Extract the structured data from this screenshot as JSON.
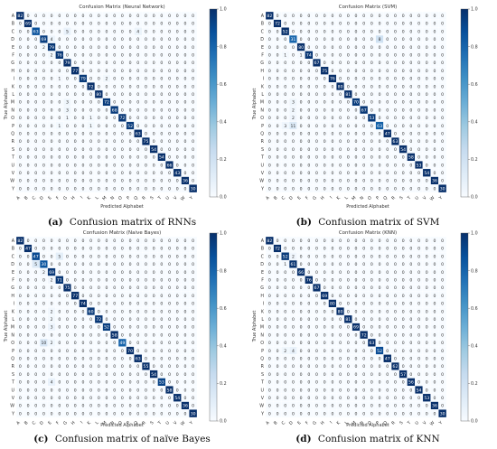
{
  "colorbar": {
    "low_color": "#f7fbff",
    "high_color": "#08306b",
    "ticks": [
      "0.0",
      "0.2",
      "0.4",
      "0.6",
      "0.8",
      "1.0"
    ]
  },
  "chart_data": [
    {
      "type": "heatmap",
      "title": "Confusion Matrix (Neural Network)",
      "xlabel": "Predicted Alphabet",
      "ylabel": "True Alphabet",
      "caption_letter": "(a)",
      "caption_text": "Confusion matrix of RNNs",
      "labels": [
        "A",
        "B",
        "C",
        "D",
        "E",
        "F",
        "G",
        "H",
        "I",
        "K",
        "L",
        "M",
        "N",
        "O",
        "P",
        "Q",
        "R",
        "S",
        "T",
        "U",
        "V",
        "W",
        "Y"
      ],
      "diagonal": [
        82,
        69,
        63,
        69,
        79,
        76,
        79,
        77,
        79,
        72,
        80,
        72,
        68,
        72,
        52,
        63,
        75,
        54,
        54,
        66,
        43,
        36,
        30
      ],
      "off_diagonal": [
        {
          "row": 2,
          "col": 6,
          "value": 5
        },
        {
          "row": 2,
          "col": 15,
          "value": 4
        },
        {
          "row": 3,
          "col": 4,
          "value": 4
        },
        {
          "row": 4,
          "col": 3,
          "value": 2
        },
        {
          "row": 5,
          "col": 4,
          "value": 2
        },
        {
          "row": 8,
          "col": 5,
          "value": 1
        },
        {
          "row": 8,
          "col": 11,
          "value": 2
        },
        {
          "row": 11,
          "col": 6,
          "value": 3
        },
        {
          "row": 12,
          "col": 6,
          "value": 3
        },
        {
          "row": 13,
          "col": 6,
          "value": 1
        },
        {
          "row": 13,
          "col": 9,
          "value": 1
        },
        {
          "row": 14,
          "col": 5,
          "value": 1
        },
        {
          "row": 14,
          "col": 9,
          "value": 1
        }
      ]
    },
    {
      "type": "heatmap",
      "title": "Confusion Matrix (SVM)",
      "xlabel": "Predicted Alphabet",
      "ylabel": "True Alphabet",
      "caption_letter": "(b)",
      "caption_text": "Confusion matrix of SVM",
      "labels": [
        "A",
        "B",
        "C",
        "D",
        "E",
        "F",
        "G",
        "H",
        "I",
        "K",
        "L",
        "M",
        "N",
        "O",
        "P",
        "Q",
        "R",
        "S",
        "T",
        "U",
        "V",
        "W",
        "Y"
      ],
      "diagonal": [
        82,
        72,
        52,
        31,
        80,
        74,
        67,
        75,
        76,
        80,
        81,
        70,
        67,
        53,
        63,
        47,
        63,
        54,
        58,
        53,
        54,
        36,
        30
      ],
      "off_diagonal": [
        {
          "row": 3,
          "col": 14,
          "value": 8
        },
        {
          "row": 5,
          "col": 2,
          "value": 1
        },
        {
          "row": 5,
          "col": 4,
          "value": 1
        },
        {
          "row": 11,
          "col": 3,
          "value": 3
        },
        {
          "row": 12,
          "col": 3,
          "value": 2
        },
        {
          "row": 13,
          "col": 3,
          "value": 2
        },
        {
          "row": 14,
          "col": 2,
          "value": 3
        },
        {
          "row": 14,
          "col": 3,
          "value": 11
        }
      ]
    },
    {
      "type": "heatmap",
      "title": "Confusion Matrix (Naive Bayes)",
      "xlabel": "Predicted Alphabet",
      "ylabel": "True Alphabet",
      "caption_letter": "(c)",
      "caption_text": "Confusion matrix of naïve Bayes",
      "labels": [
        "A",
        "B",
        "C",
        "D",
        "E",
        "F",
        "G",
        "H",
        "I",
        "K",
        "L",
        "M",
        "N",
        "O",
        "P",
        "Q",
        "R",
        "S",
        "T",
        "U",
        "V",
        "W",
        "Y"
      ],
      "diagonal": [
        82,
        47,
        47,
        30,
        69,
        71,
        75,
        77,
        74,
        60,
        72,
        52,
        58,
        49,
        70,
        63,
        55,
        54,
        53,
        58,
        54,
        36,
        30
      ],
      "off_diagonal": [
        {
          "row": 2,
          "col": 5,
          "value": 5
        },
        {
          "row": 3,
          "col": 2,
          "value": 5
        },
        {
          "row": 4,
          "col": 3,
          "value": 2
        },
        {
          "row": 5,
          "col": 4,
          "value": 2
        },
        {
          "row": 9,
          "col": 4,
          "value": 2
        },
        {
          "row": 10,
          "col": 4,
          "value": 2
        },
        {
          "row": 11,
          "col": 4,
          "value": 3
        },
        {
          "row": 13,
          "col": 3,
          "value": 10
        },
        {
          "row": 13,
          "col": 4,
          "value": 2
        },
        {
          "row": 18,
          "col": 4,
          "value": 4
        }
      ]
    },
    {
      "type": "heatmap",
      "title": "Confusion Matrix (KNN)",
      "xlabel": "Predicted Alphabet",
      "ylabel": "True Alphabet",
      "caption_letter": "(d)",
      "caption_text": "Confusion matrix of KNN",
      "labels": [
        "A",
        "B",
        "C",
        "D",
        "E",
        "F",
        "G",
        "H",
        "I",
        "K",
        "L",
        "M",
        "N",
        "O",
        "P",
        "Q",
        "R",
        "S",
        "T",
        "U",
        "V",
        "W",
        "Y"
      ],
      "diagonal": [
        82,
        72,
        52,
        61,
        66,
        76,
        67,
        69,
        80,
        80,
        81,
        69,
        72,
        63,
        52,
        47,
        62,
        57,
        56,
        54,
        53,
        36,
        30
      ],
      "off_diagonal": [
        {
          "row": 2,
          "col": 3,
          "value": 2
        },
        {
          "row": 3,
          "col": 2,
          "value": 1
        },
        {
          "row": 14,
          "col": 3,
          "value": 4
        },
        {
          "row": 14,
          "col": 2,
          "value": 2
        }
      ]
    }
  ]
}
